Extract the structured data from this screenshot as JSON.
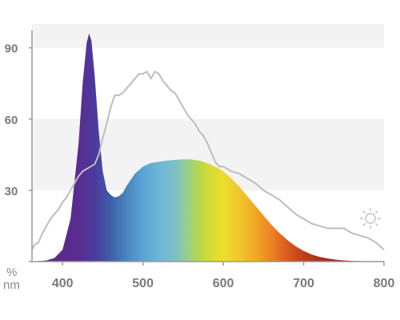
{
  "chart_data": {
    "type": "area",
    "title": "",
    "xlabel": "nm",
    "ylabel": "%",
    "xlim": [
      362,
      800
    ],
    "ylim": [
      0,
      100
    ],
    "x_ticks": [
      400,
      500,
      600,
      700,
      800
    ],
    "y_ticks": [
      30,
      60,
      90
    ],
    "grid": "alternating horizontal bands",
    "legend": "none",
    "series": [
      {
        "style": "spectrum-filled-area",
        "x": [
          362,
          370,
          380,
          390,
          400,
          410,
          420,
          425,
          430,
          433,
          436,
          440,
          445,
          450,
          455,
          460,
          465,
          470,
          475,
          480,
          490,
          500,
          510,
          520,
          530,
          540,
          550,
          560,
          570,
          580,
          590,
          600,
          610,
          620,
          630,
          640,
          650,
          660,
          670,
          680,
          690,
          700,
          710,
          720,
          730,
          740,
          750,
          760,
          770,
          780,
          790,
          800
        ],
        "y": [
          0,
          0.2,
          0.5,
          1.5,
          5,
          18,
          50,
          75,
          92,
          96,
          93,
          78,
          55,
          38,
          30,
          28,
          27,
          27.5,
          29,
          32,
          37,
          40,
          41.5,
          42,
          42.5,
          42.8,
          43,
          43,
          42.5,
          41.5,
          40,
          38,
          35,
          31.5,
          27.5,
          23.5,
          19.5,
          15.5,
          12,
          9,
          6.5,
          4.5,
          3,
          2,
          1.3,
          0.8,
          0.5,
          0.3,
          0.2,
          0.1,
          0.05,
          0
        ]
      },
      {
        "style": "gray-outline",
        "color": "#bdbdbd",
        "x": [
          362,
          365,
          370,
          375,
          380,
          385,
          390,
          395,
          400,
          405,
          410,
          415,
          420,
          425,
          430,
          435,
          440,
          445,
          450,
          455,
          460,
          465,
          470,
          475,
          480,
          485,
          490,
          495,
          500,
          505,
          510,
          515,
          520,
          525,
          530,
          535,
          540,
          545,
          550,
          555,
          560,
          565,
          570,
          575,
          580,
          585,
          590,
          595,
          600,
          610,
          620,
          630,
          640,
          650,
          660,
          670,
          680,
          690,
          700,
          710,
          720,
          730,
          740,
          750,
          760,
          770,
          780,
          790,
          800
        ],
        "y": [
          5,
          7,
          8,
          12,
          15,
          18,
          20,
          22,
          25,
          27,
          30,
          33,
          36,
          38,
          39,
          40,
          41,
          45,
          52,
          58,
          65,
          70,
          70,
          71,
          73,
          75,
          77,
          79,
          79,
          80,
          77,
          80,
          79,
          76,
          74,
          72,
          71,
          68,
          65,
          62,
          60,
          58,
          55,
          53,
          50,
          46,
          42,
          40,
          40,
          38,
          37,
          35,
          33,
          30,
          28,
          26,
          23,
          20,
          18,
          16,
          15,
          14,
          14,
          14,
          12,
          11,
          10,
          8,
          5
        ]
      }
    ]
  },
  "icons": {
    "light-source": "sun-icon"
  }
}
